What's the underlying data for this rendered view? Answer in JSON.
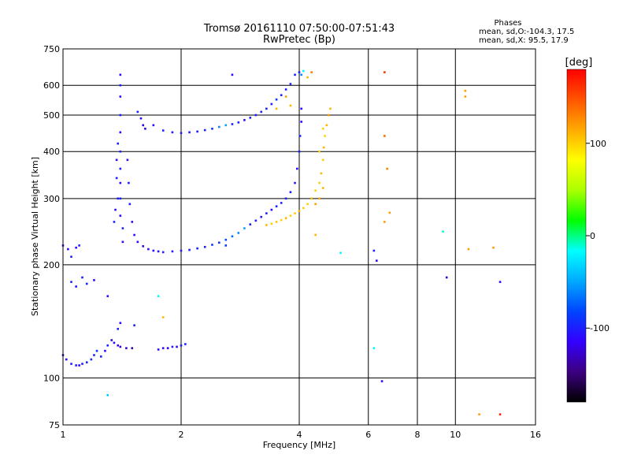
{
  "chart_data": {
    "type": "scatter",
    "title": "Tromsø 20161110 07:50:00-07:51:43",
    "subtitle": "RwPretec (Bp)",
    "xlabel": "Frequency [MHz]",
    "ylabel": "Stationary phase Virtual Height [km]",
    "x_scale": "log",
    "y_scale": "log",
    "xlim": [
      1,
      16
    ],
    "ylim": [
      75,
      750
    ],
    "grid": true,
    "x_ticks": [
      1,
      2,
      4,
      6,
      8,
      10,
      16
    ],
    "y_ticks": [
      75,
      100,
      200,
      300,
      400,
      500,
      600,
      750
    ],
    "info": {
      "heading": "Phases",
      "line_o": "mean, sd,O:-104.3, 17.5",
      "line_x": "mean, sd,X:  95.5, 17.9"
    },
    "colorbar": {
      "label": "[deg]",
      "range": [
        -180,
        180
      ],
      "ticks": [
        -100,
        0,
        100
      ],
      "colors": [
        "#000000",
        "#3d0080",
        "#3300ff",
        "#0044ff",
        "#00aaff",
        "#00ffff",
        "#00ff00",
        "#aaff00",
        "#ffff00",
        "#ffaa00",
        "#ff5500",
        "#ff0000"
      ]
    },
    "series": [
      {
        "group": "E-layer trace",
        "points": [
          [
            1.0,
            115,
            -130
          ],
          [
            1.02,
            112,
            -110
          ],
          [
            1.05,
            109,
            -100
          ],
          [
            1.08,
            108,
            -100
          ],
          [
            1.1,
            108,
            -110
          ],
          [
            1.12,
            109,
            -100
          ],
          [
            1.15,
            110,
            -100
          ],
          [
            1.18,
            112,
            -95
          ],
          [
            1.2,
            115,
            -100
          ],
          [
            1.22,
            118,
            -90
          ],
          [
            1.25,
            114,
            -100
          ],
          [
            1.28,
            118,
            -110
          ],
          [
            1.3,
            122,
            -100
          ],
          [
            1.33,
            126,
            -120
          ],
          [
            1.35,
            124,
            -110
          ],
          [
            1.38,
            122,
            -120
          ],
          [
            1.4,
            121,
            -125
          ],
          [
            1.45,
            120,
            -130
          ],
          [
            1.5,
            120,
            -140
          ],
          [
            1.75,
            119,
            -120
          ],
          [
            1.8,
            120,
            -110
          ],
          [
            1.85,
            120,
            -120
          ],
          [
            1.9,
            121,
            -100
          ],
          [
            1.95,
            121,
            -110
          ],
          [
            2.0,
            122,
            -100
          ],
          [
            2.05,
            123,
            -100
          ]
        ]
      },
      {
        "group": "Low-frequency scatter",
        "points": [
          [
            1.0,
            225,
            -100
          ],
          [
            1.03,
            220,
            -110
          ],
          [
            1.05,
            210,
            -100
          ],
          [
            1.08,
            222,
            -110
          ],
          [
            1.1,
            225,
            -100
          ],
          [
            1.05,
            180,
            -100
          ],
          [
            1.08,
            175,
            -110
          ],
          [
            1.12,
            185,
            -100
          ],
          [
            1.15,
            178,
            -100
          ],
          [
            1.2,
            182,
            -110
          ],
          [
            1.3,
            165,
            -110
          ],
          [
            1.38,
            135,
            -100
          ],
          [
            1.4,
            140,
            -110
          ],
          [
            1.52,
            138,
            -100
          ],
          [
            1.75,
            165,
            -20
          ],
          [
            1.8,
            145,
            110
          ],
          [
            1.3,
            90,
            -40
          ]
        ]
      },
      {
        "group": "F-region trace (O-mode)",
        "points": [
          [
            1.4,
            640,
            -110
          ],
          [
            1.4,
            600,
            -100
          ],
          [
            1.4,
            560,
            -110
          ],
          [
            1.4,
            500,
            -100
          ],
          [
            1.4,
            450,
            -110
          ],
          [
            1.4,
            400,
            -100
          ],
          [
            1.4,
            360,
            -100
          ],
          [
            1.4,
            330,
            -110
          ],
          [
            1.4,
            300,
            -100
          ],
          [
            1.4,
            270,
            -110
          ],
          [
            1.42,
            250,
            -100
          ],
          [
            1.42,
            230,
            -110
          ],
          [
            1.38,
            420,
            -100
          ],
          [
            1.37,
            380,
            -110
          ],
          [
            1.37,
            340,
            -100
          ],
          [
            1.38,
            300,
            -100
          ],
          [
            1.36,
            280,
            -110
          ],
          [
            1.35,
            260,
            -100
          ],
          [
            1.46,
            380,
            -110
          ],
          [
            1.47,
            330,
            -100
          ],
          [
            1.48,
            290,
            -100
          ],
          [
            1.5,
            260,
            -110
          ],
          [
            1.52,
            240,
            -110
          ],
          [
            1.55,
            230,
            -110
          ],
          [
            1.6,
            224,
            -110
          ],
          [
            1.65,
            220,
            -110
          ],
          [
            1.7,
            218,
            -110
          ],
          [
            1.75,
            217,
            -110
          ],
          [
            1.8,
            216,
            -100
          ],
          [
            1.9,
            217,
            -100
          ],
          [
            2.0,
            218,
            -100
          ],
          [
            2.1,
            219,
            -100
          ],
          [
            2.2,
            221,
            -100
          ],
          [
            2.3,
            223,
            -100
          ],
          [
            2.4,
            226,
            -90
          ],
          [
            2.5,
            229,
            -90
          ],
          [
            2.6,
            233,
            -80
          ],
          [
            2.7,
            238,
            -70
          ],
          [
            2.8,
            243,
            -60
          ],
          [
            2.9,
            250,
            -50
          ],
          [
            3.0,
            256,
            -100
          ],
          [
            3.1,
            262,
            -100
          ],
          [
            3.2,
            268,
            -100
          ],
          [
            3.3,
            274,
            -100
          ],
          [
            3.4,
            280,
            -110
          ],
          [
            3.5,
            286,
            -100
          ],
          [
            3.6,
            292,
            -100
          ],
          [
            3.7,
            300,
            -100
          ],
          [
            3.8,
            312,
            -100
          ],
          [
            3.9,
            330,
            -100
          ],
          [
            3.95,
            360,
            -110
          ],
          [
            4.0,
            400,
            -100
          ],
          [
            4.02,
            440,
            -100
          ],
          [
            4.05,
            480,
            -110
          ],
          [
            4.05,
            520,
            -110
          ]
        ]
      },
      {
        "group": "F-region upper trace",
        "points": [
          [
            1.55,
            510,
            -100
          ],
          [
            1.58,
            490,
            -110
          ],
          [
            1.6,
            470,
            -120
          ],
          [
            1.62,
            460,
            -120
          ],
          [
            1.7,
            470,
            -110
          ],
          [
            1.8,
            455,
            -100
          ],
          [
            1.9,
            450,
            -100
          ],
          [
            2.0,
            448,
            -100
          ],
          [
            2.1,
            450,
            -100
          ],
          [
            2.2,
            452,
            -100
          ],
          [
            2.3,
            456,
            -100
          ],
          [
            2.4,
            460,
            -90
          ],
          [
            2.5,
            465,
            -60
          ],
          [
            2.6,
            470,
            -50
          ],
          [
            2.7,
            473,
            -100
          ],
          [
            2.8,
            478,
            -100
          ],
          [
            2.9,
            485,
            -110
          ],
          [
            3.0,
            492,
            -100
          ],
          [
            3.1,
            500,
            -100
          ],
          [
            3.2,
            510,
            -100
          ],
          [
            3.3,
            520,
            -100
          ],
          [
            3.4,
            535,
            -100
          ],
          [
            3.5,
            550,
            -90
          ],
          [
            3.6,
            565,
            -100
          ],
          [
            3.7,
            585,
            -100
          ],
          [
            3.8,
            605,
            -100
          ],
          [
            3.9,
            640,
            -100
          ],
          [
            4.0,
            650,
            -100
          ],
          [
            3.5,
            520,
            110
          ],
          [
            3.7,
            560,
            120
          ],
          [
            3.8,
            530,
            110
          ],
          [
            4.05,
            640,
            -60
          ],
          [
            4.1,
            655,
            -20
          ],
          [
            4.2,
            630,
            110
          ],
          [
            4.3,
            650,
            130
          ]
        ]
      },
      {
        "group": "F-region trace (X-mode)",
        "points": [
          [
            3.3,
            255,
            110
          ],
          [
            3.4,
            257,
            100
          ],
          [
            3.5,
            260,
            105
          ],
          [
            3.6,
            263,
            100
          ],
          [
            3.7,
            266,
            110
          ],
          [
            3.8,
            270,
            100
          ],
          [
            3.9,
            274,
            100
          ],
          [
            4.0,
            278,
            110
          ],
          [
            4.1,
            283,
            100
          ],
          [
            4.2,
            290,
            100
          ],
          [
            4.3,
            300,
            110
          ],
          [
            4.4,
            315,
            100
          ],
          [
            4.5,
            330,
            100
          ],
          [
            4.55,
            350,
            110
          ],
          [
            4.6,
            380,
            100
          ],
          [
            4.62,
            410,
            110
          ],
          [
            4.65,
            440,
            100
          ],
          [
            4.7,
            470,
            110
          ],
          [
            4.75,
            500,
            120
          ],
          [
            4.8,
            520,
            110
          ],
          [
            4.4,
            290,
            120
          ],
          [
            4.5,
            300,
            115
          ],
          [
            4.6,
            320,
            110
          ],
          [
            4.5,
            400,
            100
          ],
          [
            4.6,
            460,
            100
          ]
        ]
      },
      {
        "group": "High-frequency scatter",
        "points": [
          [
            5.1,
            215,
            -20
          ],
          [
            6.2,
            218,
            -100
          ],
          [
            6.3,
            205,
            -110
          ],
          [
            6.2,
            120,
            -20
          ],
          [
            6.5,
            98,
            -110
          ],
          [
            6.6,
            440,
            140
          ],
          [
            6.6,
            650,
            160
          ],
          [
            6.8,
            275,
            120
          ],
          [
            6.6,
            260,
            120
          ],
          [
            6.7,
            360,
            130
          ],
          [
            9.3,
            245,
            -10
          ],
          [
            9.5,
            185,
            -120
          ],
          [
            10.8,
            220,
            120
          ],
          [
            10.6,
            580,
            120
          ],
          [
            10.6,
            560,
            120
          ],
          [
            11.5,
            80,
            120
          ],
          [
            12.5,
            222,
            120
          ],
          [
            13.0,
            180,
            -110
          ],
          [
            13.0,
            80,
            170
          ],
          [
            4.4,
            240,
            110
          ],
          [
            2.7,
            640,
            -110
          ],
          [
            2.6,
            225,
            -90
          ]
        ]
      }
    ]
  }
}
